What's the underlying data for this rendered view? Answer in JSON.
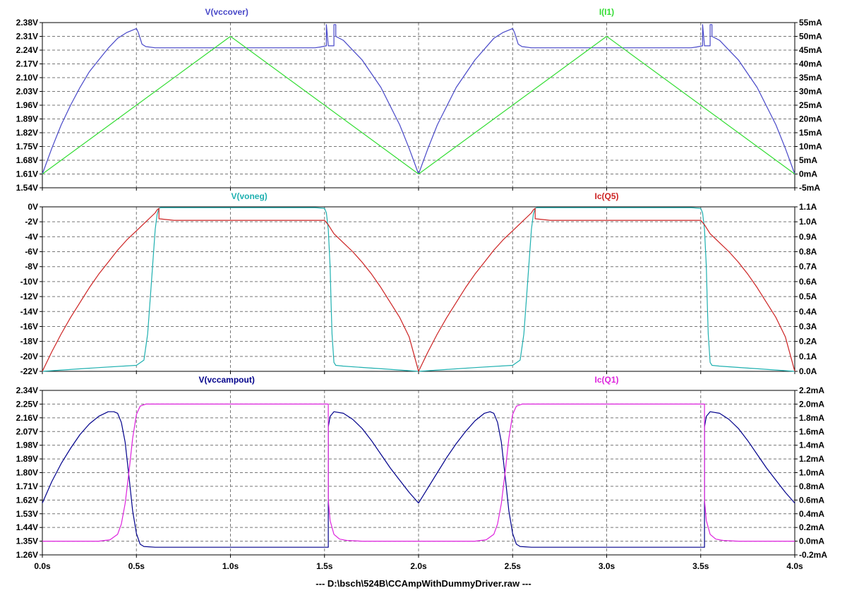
{
  "footer": "---  D:\\bsch\\524B\\CCAmpWithDummyDriver.raw  ---",
  "x_axis": {
    "ticks": [
      0,
      0.5,
      1,
      1.5,
      2,
      2.5,
      3,
      3.5,
      4
    ],
    "labels": [
      "0.0s",
      "0.5s",
      "1.0s",
      "1.5s",
      "2.0s",
      "2.5s",
      "3.0s",
      "3.5s",
      "4.0s"
    ]
  },
  "chart_data": [
    {
      "type": "line",
      "pane": 1,
      "grid": true,
      "xlim": [
        0,
        4
      ],
      "left_axis": {
        "ylim": [
          1.54,
          2.38
        ],
        "ticks": [
          2.38,
          2.31,
          2.24,
          2.17,
          2.1,
          2.03,
          1.96,
          1.89,
          1.82,
          1.75,
          1.68,
          1.61,
          1.54
        ],
        "labels": [
          "2.38V",
          "2.31V",
          "2.24V",
          "2.17V",
          "2.10V",
          "2.03V",
          "1.96V",
          "1.89V",
          "1.82V",
          "1.75V",
          "1.68V",
          "1.61V",
          "1.54V"
        ]
      },
      "right_axis": {
        "ylim": [
          -5,
          55
        ],
        "ticks": [
          55,
          50,
          45,
          40,
          35,
          30,
          25,
          20,
          15,
          10,
          5,
          0,
          -5
        ],
        "labels": [
          "55mA",
          "50mA",
          "45mA",
          "40mA",
          "35mA",
          "30mA",
          "25mA",
          "20mA",
          "15mA",
          "10mA",
          "5mA",
          "0mA",
          "-5mA"
        ]
      },
      "series": [
        {
          "name": "V(vccover)",
          "axis": "left",
          "color": "#4848c8",
          "label_x": 0.98,
          "x": [
            0,
            0.05,
            0.1,
            0.15,
            0.2,
            0.25,
            0.3,
            0.35,
            0.4,
            0.45,
            0.5,
            0.51,
            0.52,
            0.53,
            0.55,
            0.6,
            0.7,
            0.9,
            1.1,
            1.3,
            1.45,
            1.48,
            1.51,
            1.51,
            1.52,
            1.55,
            1.55,
            1.56,
            1.56,
            1.6,
            1.7,
            1.8,
            1.9,
            1.95,
            2.0,
            2.05,
            2.1,
            2.2,
            2.3,
            2.4,
            2.45,
            2.5,
            2.51,
            2.52,
            2.53,
            2.55,
            2.6,
            2.7,
            2.9,
            3.1,
            3.3,
            3.45,
            3.48,
            3.51,
            3.51,
            3.52,
            3.55,
            3.55,
            3.56,
            3.56,
            3.6,
            3.7,
            3.8,
            3.9,
            3.95,
            4.0
          ],
          "y": [
            1.61,
            1.74,
            1.86,
            1.96,
            2.05,
            2.13,
            2.19,
            2.25,
            2.3,
            2.33,
            2.35,
            2.33,
            2.3,
            2.27,
            2.258,
            2.252,
            2.252,
            2.252,
            2.252,
            2.252,
            2.252,
            2.256,
            2.262,
            2.37,
            2.262,
            2.262,
            2.37,
            2.37,
            2.31,
            2.29,
            2.19,
            2.05,
            1.86,
            1.74,
            1.61,
            1.74,
            1.86,
            2.05,
            2.19,
            2.3,
            2.33,
            2.35,
            2.33,
            2.3,
            2.27,
            2.258,
            2.252,
            2.252,
            2.252,
            2.252,
            2.252,
            2.252,
            2.256,
            2.262,
            2.37,
            2.262,
            2.262,
            2.37,
            2.37,
            2.31,
            2.29,
            2.19,
            2.05,
            1.86,
            1.74,
            1.61
          ]
        },
        {
          "name": "I(I1)",
          "axis": "right",
          "color": "#33dd33",
          "label_x": 3.0,
          "x": [
            0,
            1,
            2,
            3,
            4
          ],
          "y": [
            0,
            50,
            0,
            50,
            0
          ]
        }
      ]
    },
    {
      "type": "line",
      "pane": 2,
      "grid": true,
      "xlim": [
        0,
        4
      ],
      "left_axis": {
        "ylim": [
          -22,
          0
        ],
        "ticks": [
          0,
          -2,
          -4,
          -6,
          -8,
          -10,
          -12,
          -14,
          -16,
          -18,
          -20,
          -22
        ],
        "labels": [
          "0V",
          "-2V",
          "-4V",
          "-6V",
          "-8V",
          "-10V",
          "-12V",
          "-14V",
          "-16V",
          "-18V",
          "-20V",
          "-22V"
        ]
      },
      "right_axis": {
        "ylim": [
          0,
          1.1
        ],
        "ticks": [
          1.1,
          1.0,
          0.9,
          0.8,
          0.7,
          0.6,
          0.5,
          0.4,
          0.3,
          0.2,
          0.1,
          0.0
        ],
        "labels": [
          "1.1A",
          "1.0A",
          "0.9A",
          "0.8A",
          "0.7A",
          "0.6A",
          "0.5A",
          "0.4A",
          "0.3A",
          "0.2A",
          "0.1A",
          "0.0A"
        ]
      },
      "series": [
        {
          "name": "V(voneg)",
          "axis": "left",
          "color": "#1fb0b0",
          "label_x": 1.1,
          "x": [
            0,
            0.3,
            0.5,
            0.54,
            0.56,
            0.58,
            0.6,
            0.61,
            0.62,
            0.63,
            0.7,
            1.0,
            1.45,
            1.5,
            1.51,
            1.52,
            1.53,
            1.535,
            1.54,
            1.55,
            1.56,
            1.6,
            2.0,
            2.3,
            2.5,
            2.54,
            2.56,
            2.58,
            2.6,
            2.61,
            2.62,
            2.63,
            2.7,
            3.0,
            3.45,
            3.5,
            3.51,
            3.52,
            3.53,
            3.535,
            3.54,
            3.55,
            3.56,
            3.6,
            4.0
          ],
          "y": [
            -22,
            -21.5,
            -21.2,
            -20.5,
            -17,
            -10,
            -3,
            -1,
            -0.2,
            -0.1,
            -0.1,
            -0.1,
            -0.1,
            -0.2,
            -0.8,
            -3,
            -8,
            -13,
            -17,
            -20.8,
            -21.2,
            -21.3,
            -22,
            -21.5,
            -21.2,
            -20.5,
            -17,
            -10,
            -3,
            -1,
            -0.2,
            -0.1,
            -0.1,
            -0.1,
            -0.1,
            -0.2,
            -0.8,
            -3,
            -8,
            -13,
            -17,
            -20.8,
            -21.2,
            -21.3,
            -22
          ]
        },
        {
          "name": "Ic(Q5)",
          "axis": "right",
          "color": "#cc2222",
          "label_x": 3.0,
          "x": [
            0,
            0.05,
            0.1,
            0.15,
            0.2,
            0.25,
            0.3,
            0.35,
            0.4,
            0.45,
            0.5,
            0.55,
            0.6,
            0.61,
            0.62,
            0.62,
            0.7,
            1.0,
            1.5,
            1.52,
            1.55,
            1.6,
            1.65,
            1.7,
            1.75,
            1.8,
            1.85,
            1.9,
            1.95,
            2.0,
            2.05,
            2.1,
            2.15,
            2.2,
            2.25,
            2.3,
            2.35,
            2.4,
            2.45,
            2.5,
            2.55,
            2.6,
            2.61,
            2.62,
            2.62,
            2.7,
            3.0,
            3.5,
            3.52,
            3.55,
            3.6,
            3.65,
            3.7,
            3.75,
            3.8,
            3.85,
            3.9,
            3.95,
            4.0
          ],
          "y": [
            0,
            0.13,
            0.25,
            0.36,
            0.46,
            0.56,
            0.65,
            0.73,
            0.81,
            0.88,
            0.94,
            1.0,
            1.06,
            1.08,
            1.09,
            1.02,
            1.01,
            1.01,
            1.01,
            0.98,
            0.92,
            0.86,
            0.8,
            0.73,
            0.65,
            0.56,
            0.46,
            0.36,
            0.23,
            0,
            0.13,
            0.25,
            0.36,
            0.46,
            0.56,
            0.65,
            0.73,
            0.81,
            0.88,
            0.94,
            1.0,
            1.06,
            1.08,
            1.09,
            1.02,
            1.01,
            1.01,
            1.01,
            0.98,
            0.92,
            0.86,
            0.8,
            0.73,
            0.65,
            0.56,
            0.46,
            0.36,
            0.23,
            0
          ]
        }
      ]
    },
    {
      "type": "line",
      "pane": 3,
      "grid": true,
      "xlim": [
        0,
        4
      ],
      "left_axis": {
        "ylim": [
          1.26,
          2.34
        ],
        "ticks": [
          2.34,
          2.25,
          2.16,
          2.07,
          1.98,
          1.89,
          1.8,
          1.71,
          1.62,
          1.53,
          1.44,
          1.35,
          1.26
        ],
        "labels": [
          "2.34V",
          "2.25V",
          "2.16V",
          "2.07V",
          "1.98V",
          "1.89V",
          "1.80V",
          "1.71V",
          "1.62V",
          "1.53V",
          "1.44V",
          "1.35V",
          "1.26V"
        ]
      },
      "right_axis": {
        "ylim": [
          -0.2,
          2.2
        ],
        "ticks": [
          2.2,
          2.0,
          1.8,
          1.6,
          1.4,
          1.2,
          1.0,
          0.8,
          0.6,
          0.4,
          0.2,
          0.0,
          -0.2
        ],
        "labels": [
          "2.2mA",
          "2.0mA",
          "1.8mA",
          "1.6mA",
          "1.4mA",
          "1.2mA",
          "1.0mA",
          "0.8mA",
          "0.6mA",
          "0.4mA",
          "0.2mA",
          "0.0mA",
          "-0.2mA"
        ]
      },
      "series": [
        {
          "name": "V(vccampout)",
          "axis": "left",
          "color": "#00008b",
          "label_x": 0.98,
          "x": [
            0,
            0.05,
            0.1,
            0.15,
            0.2,
            0.25,
            0.3,
            0.35,
            0.38,
            0.4,
            0.42,
            0.44,
            0.46,
            0.48,
            0.5,
            0.52,
            0.54,
            0.6,
            1.0,
            1.5,
            1.52,
            1.52,
            1.53,
            1.55,
            1.6,
            1.65,
            1.7,
            1.75,
            1.8,
            1.85,
            1.9,
            1.95,
            2.0,
            2.05,
            2.1,
            2.15,
            2.2,
            2.25,
            2.3,
            2.35,
            2.38,
            2.4,
            2.42,
            2.44,
            2.46,
            2.48,
            2.5,
            2.52,
            2.54,
            2.6,
            3.0,
            3.5,
            3.52,
            3.52,
            3.53,
            3.55,
            3.6,
            3.65,
            3.7,
            3.75,
            3.8,
            3.85,
            3.9,
            3.95,
            4.0
          ],
          "y": [
            1.6,
            1.74,
            1.86,
            1.96,
            2.05,
            2.12,
            2.17,
            2.2,
            2.2,
            2.19,
            2.13,
            2.0,
            1.78,
            1.55,
            1.4,
            1.33,
            1.315,
            1.31,
            1.31,
            1.31,
            1.31,
            2.1,
            2.17,
            2.2,
            2.19,
            2.15,
            2.09,
            2.01,
            1.92,
            1.83,
            1.75,
            1.67,
            1.6,
            1.7,
            1.8,
            1.9,
            1.99,
            2.07,
            2.14,
            2.19,
            2.2,
            2.19,
            2.13,
            2.0,
            1.78,
            1.55,
            1.4,
            1.33,
            1.315,
            1.31,
            1.31,
            1.31,
            1.31,
            2.1,
            2.17,
            2.2,
            2.19,
            2.15,
            2.09,
            2.01,
            1.92,
            1.83,
            1.75,
            1.67,
            1.6
          ]
        },
        {
          "name": "Ic(Q1)",
          "axis": "right",
          "color": "#dd22dd",
          "label_x": 3.0,
          "x": [
            0,
            0.3,
            0.36,
            0.4,
            0.42,
            0.44,
            0.46,
            0.48,
            0.5,
            0.52,
            0.55,
            0.6,
            1.0,
            1.5,
            1.52,
            1.52,
            1.53,
            1.55,
            1.58,
            1.62,
            1.7,
            2.0,
            2.3,
            2.36,
            2.4,
            2.42,
            2.44,
            2.46,
            2.48,
            2.5,
            2.52,
            2.55,
            2.6,
            3.0,
            3.5,
            3.52,
            3.52,
            3.53,
            3.55,
            3.58,
            3.62,
            3.7,
            4.0
          ],
          "y": [
            0,
            0,
            0.02,
            0.1,
            0.25,
            0.55,
            1.0,
            1.5,
            1.85,
            1.97,
            2.0,
            2.0,
            2.0,
            2.0,
            2.0,
            0.6,
            0.3,
            0.1,
            0.03,
            0.01,
            0,
            0,
            0,
            0.02,
            0.1,
            0.25,
            0.55,
            1.0,
            1.5,
            1.85,
            1.97,
            2.0,
            2.0,
            2.0,
            2.0,
            2.0,
            0.6,
            0.3,
            0.1,
            0.03,
            0.01,
            0,
            0
          ]
        }
      ]
    }
  ]
}
